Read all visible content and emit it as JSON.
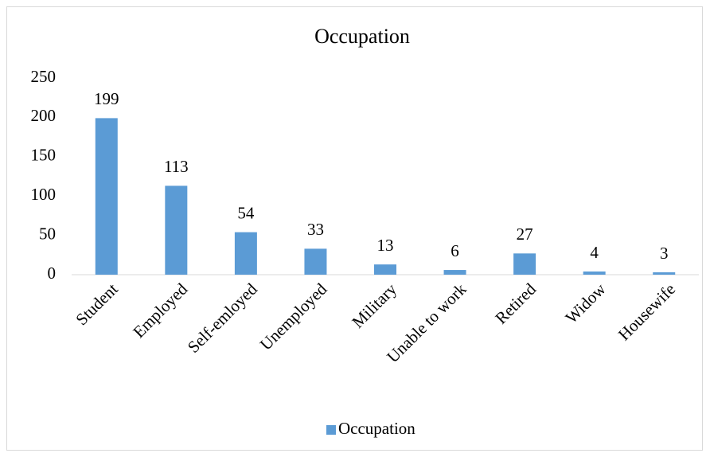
{
  "chart_data": {
    "type": "bar",
    "title": "Occupation",
    "categories": [
      "Student",
      "Employed",
      "Self-emloyed",
      "Unemployed",
      "Military",
      "Unable to work",
      "Retired",
      "Widow",
      "Housewife"
    ],
    "series": [
      {
        "name": "Occupation",
        "color": "#5b9bd5",
        "values": [
          199,
          113,
          54,
          33,
          13,
          6,
          27,
          4,
          3
        ]
      }
    ],
    "ylim": [
      0,
      250
    ],
    "yticks": [
      0,
      50,
      100,
      150,
      200,
      250
    ],
    "grid": false,
    "legend": "bottom"
  }
}
